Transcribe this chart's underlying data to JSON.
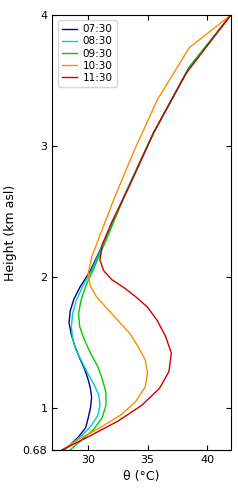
{
  "title": "",
  "xlabel": "θ (°C)",
  "ylabel": "Height (km asl)",
  "xlim": [
    27,
    42
  ],
  "ylim": [
    0.68,
    4.0
  ],
  "xticks": [
    30,
    35,
    40
  ],
  "yticks": [
    1,
    2,
    3,
    4
  ],
  "ytick_extra": 0.68,
  "lines": [
    {
      "label": "07:30",
      "color": "#00008B",
      "data_x": [
        28.0,
        28.5,
        29.2,
        29.8,
        30.0,
        30.2,
        30.3,
        30.2,
        30.0,
        29.7,
        29.3,
        28.9,
        28.6,
        28.4,
        28.5,
        28.8,
        29.3,
        30.2,
        31.5,
        33.2,
        35.5,
        38.5,
        42.0
      ],
      "data_y": [
        0.68,
        0.72,
        0.78,
        0.85,
        0.92,
        1.0,
        1.08,
        1.15,
        1.22,
        1.3,
        1.38,
        1.47,
        1.56,
        1.65,
        1.74,
        1.83,
        1.92,
        2.05,
        2.3,
        2.65,
        3.1,
        3.6,
        4.0
      ]
    },
    {
      "label": "08:30",
      "color": "#00CCCC",
      "data_x": [
        28.0,
        28.8,
        29.6,
        30.3,
        30.8,
        31.0,
        30.9,
        30.5,
        30.0,
        29.5,
        29.0,
        28.7,
        28.6,
        28.7,
        29.0,
        29.5,
        30.3,
        31.5,
        33.2,
        35.5,
        38.5,
        42.0
      ],
      "data_y": [
        0.68,
        0.74,
        0.8,
        0.87,
        0.94,
        1.02,
        1.1,
        1.18,
        1.26,
        1.35,
        1.44,
        1.53,
        1.62,
        1.72,
        1.82,
        1.92,
        2.05,
        2.3,
        2.65,
        3.1,
        3.6,
        4.0
      ]
    },
    {
      "label": "09:30",
      "color": "#00CC00",
      "data_x": [
        28.5,
        29.5,
        30.5,
        31.2,
        31.5,
        31.5,
        31.2,
        30.8,
        30.2,
        29.7,
        29.3,
        29.2,
        29.4,
        29.8,
        30.5,
        31.6,
        33.2,
        35.5,
        38.5,
        42.0
      ],
      "data_y": [
        0.68,
        0.76,
        0.84,
        0.93,
        1.02,
        1.12,
        1.22,
        1.32,
        1.42,
        1.52,
        1.62,
        1.72,
        1.82,
        1.93,
        2.07,
        2.3,
        2.65,
        3.1,
        3.6,
        4.0
      ]
    },
    {
      "label": "10:30",
      "color": "#FF8C00",
      "data_x": [
        27.8,
        29.2,
        31.0,
        32.8,
        34.0,
        34.8,
        35.0,
        34.8,
        34.2,
        33.5,
        32.5,
        31.5,
        30.7,
        30.2,
        30.0,
        30.3,
        31.0,
        32.2,
        33.8,
        35.8,
        38.5,
        42.0
      ],
      "data_y": [
        0.68,
        0.76,
        0.85,
        0.95,
        1.05,
        1.16,
        1.27,
        1.37,
        1.47,
        1.57,
        1.67,
        1.77,
        1.85,
        1.93,
        2.02,
        2.15,
        2.32,
        2.6,
        2.95,
        3.35,
        3.75,
        4.0
      ]
    },
    {
      "label": "11:30",
      "color": "#CC0000",
      "data_x": [
        27.8,
        30.0,
        32.5,
        34.5,
        36.0,
        36.8,
        37.0,
        36.5,
        35.8,
        35.0,
        34.0,
        33.0,
        32.0,
        31.3,
        31.0,
        31.2,
        32.0,
        33.5,
        35.5,
        38.2,
        42.0
      ],
      "data_y": [
        0.68,
        0.78,
        0.9,
        1.02,
        1.15,
        1.28,
        1.42,
        1.55,
        1.67,
        1.77,
        1.85,
        1.92,
        1.98,
        2.05,
        2.13,
        2.25,
        2.42,
        2.7,
        3.1,
        3.55,
        4.0
      ]
    }
  ],
  "legend_loc": "upper left",
  "figsize": [
    2.38,
    5.0
  ],
  "dpi": 100
}
